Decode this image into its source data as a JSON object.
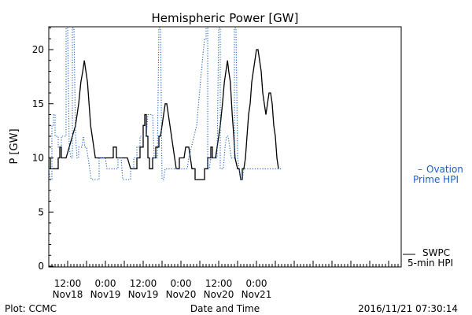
{
  "chart_data": {
    "type": "line",
    "title": "Hemispheric Power [GW]",
    "ylabel": "P [GW]",
    "xlabel": "Date and Time",
    "ylim": [
      0,
      22
    ],
    "y_ticks": [
      0,
      5,
      10,
      15,
      20
    ],
    "x_range_hours": [
      0,
      112
    ],
    "grid": false,
    "x_ticks": [
      {
        "t": 6,
        "time": "12:00",
        "date": "Nov18"
      },
      {
        "t": 18,
        "time": "0:00",
        "date": "Nov19"
      },
      {
        "t": 30,
        "time": "12:00",
        "date": "Nov19"
      },
      {
        "t": 42,
        "time": "0:00",
        "date": "Nov20"
      },
      {
        "t": 54,
        "time": "12:00",
        "date": "Nov20"
      },
      {
        "t": 66,
        "time": "0:00",
        "date": "Nov21"
      }
    ],
    "series": [
      {
        "name": "SWPC 5-min HPI",
        "color": "#000000",
        "style": "solid",
        "points": [
          [
            0,
            10
          ],
          [
            0.5,
            10
          ],
          [
            0.5,
            9
          ],
          [
            3,
            9
          ],
          [
            3,
            10
          ],
          [
            3.5,
            10
          ],
          [
            3.5,
            11
          ],
          [
            4,
            11
          ],
          [
            4,
            10
          ],
          [
            5.5,
            10
          ],
          [
            6.5,
            11
          ],
          [
            7.5,
            12
          ],
          [
            8.5,
            13
          ],
          [
            9.5,
            15
          ],
          [
            10.2,
            17
          ],
          [
            10.8,
            18
          ],
          [
            11.3,
            19
          ],
          [
            11.8,
            18
          ],
          [
            12.3,
            17
          ],
          [
            12.8,
            15
          ],
          [
            13.3,
            13
          ],
          [
            13.8,
            12
          ],
          [
            14.3,
            11
          ],
          [
            14.8,
            10
          ],
          [
            20.5,
            10
          ],
          [
            20.5,
            11
          ],
          [
            21.5,
            11
          ],
          [
            21.5,
            10
          ],
          [
            25,
            10
          ],
          [
            26,
            9
          ],
          [
            28,
            9
          ],
          [
            28,
            10
          ],
          [
            29,
            10
          ],
          [
            29,
            11
          ],
          [
            30,
            11
          ],
          [
            30,
            13
          ],
          [
            30.5,
            13
          ],
          [
            30.5,
            14
          ],
          [
            31,
            14
          ],
          [
            31,
            12
          ],
          [
            31.5,
            12
          ],
          [
            31.5,
            10
          ],
          [
            32,
            10
          ],
          [
            32,
            9
          ],
          [
            33,
            9
          ],
          [
            33,
            10
          ],
          [
            34,
            10
          ],
          [
            34,
            11
          ],
          [
            35,
            11
          ],
          [
            35,
            12
          ],
          [
            35.5,
            12
          ],
          [
            36,
            13
          ],
          [
            36.5,
            14
          ],
          [
            37,
            15
          ],
          [
            37.5,
            15
          ],
          [
            38,
            14
          ],
          [
            38.5,
            13
          ],
          [
            39,
            12
          ],
          [
            39.5,
            11
          ],
          [
            40,
            10
          ],
          [
            40.5,
            9
          ],
          [
            41.5,
            9
          ],
          [
            41.5,
            10
          ],
          [
            43,
            10
          ],
          [
            43.5,
            11
          ],
          [
            44.5,
            11
          ],
          [
            45,
            10
          ],
          [
            45.5,
            9
          ],
          [
            46.5,
            9
          ],
          [
            46.5,
            8
          ],
          [
            49.5,
            8
          ],
          [
            49.5,
            9
          ],
          [
            50.5,
            9
          ],
          [
            50.5,
            10
          ],
          [
            51.5,
            10
          ],
          [
            51.5,
            11
          ],
          [
            52,
            11
          ],
          [
            52,
            10
          ],
          [
            53,
            10
          ],
          [
            53.5,
            11
          ],
          [
            54.5,
            13
          ],
          [
            55.2,
            15
          ],
          [
            55.8,
            17
          ],
          [
            56.3,
            18
          ],
          [
            56.8,
            19
          ],
          [
            57.2,
            18
          ],
          [
            57.7,
            17
          ],
          [
            58.3,
            14
          ],
          [
            58.8,
            12
          ],
          [
            59.2,
            10
          ],
          [
            60,
            9
          ],
          [
            60.5,
            9
          ],
          [
            61,
            8
          ],
          [
            61.5,
            8
          ],
          [
            61.5,
            9
          ],
          [
            62,
            9
          ],
          [
            62.5,
            10
          ],
          [
            63,
            12
          ],
          [
            63.5,
            14
          ],
          [
            64,
            15
          ],
          [
            64.5,
            17
          ],
          [
            65,
            18
          ],
          [
            65.5,
            19
          ],
          [
            66,
            20
          ],
          [
            66.5,
            20
          ],
          [
            67,
            19
          ],
          [
            67.5,
            18
          ],
          [
            68,
            16
          ],
          [
            68.5,
            15
          ],
          [
            69,
            14
          ],
          [
            69.5,
            15
          ],
          [
            70,
            16
          ],
          [
            70.5,
            16
          ],
          [
            71,
            15
          ],
          [
            71.5,
            13
          ],
          [
            72,
            12
          ],
          [
            72.5,
            10
          ],
          [
            73,
            9
          ]
        ]
      },
      {
        "name": "Ovation Prime HPI",
        "color": "#1a5fc4",
        "style": "dotted",
        "points": [
          [
            0,
            9
          ],
          [
            0.5,
            8
          ],
          [
            1,
            8
          ],
          [
            1,
            13
          ],
          [
            1.5,
            13
          ],
          [
            1.5,
            14
          ],
          [
            2,
            14
          ],
          [
            2,
            12
          ],
          [
            3,
            12
          ],
          [
            3,
            11
          ],
          [
            4,
            11
          ],
          [
            4,
            12
          ],
          [
            5.5,
            12
          ],
          [
            5.5,
            22
          ],
          [
            6,
            22
          ],
          [
            6.5,
            11
          ],
          [
            7,
            10
          ],
          [
            7.5,
            10
          ],
          [
            7.5,
            22
          ],
          [
            8,
            22
          ],
          [
            8.5,
            12
          ],
          [
            9,
            10
          ],
          [
            9.5,
            10
          ],
          [
            9.5,
            11
          ],
          [
            10.5,
            11
          ],
          [
            11,
            12
          ],
          [
            11.5,
            11
          ],
          [
            12,
            11
          ],
          [
            12.5,
            10
          ],
          [
            13,
            9
          ],
          [
            13.5,
            8
          ],
          [
            16,
            8
          ],
          [
            16,
            10
          ],
          [
            18,
            10
          ],
          [
            18.5,
            9
          ],
          [
            22,
            9
          ],
          [
            22,
            10
          ],
          [
            23,
            10
          ],
          [
            23.5,
            8
          ],
          [
            26,
            8
          ],
          [
            26,
            9
          ],
          [
            27,
            9
          ],
          [
            27,
            10
          ],
          [
            28,
            10
          ],
          [
            28,
            11
          ],
          [
            29,
            11
          ],
          [
            29,
            12
          ],
          [
            31,
            12
          ],
          [
            31.5,
            14
          ],
          [
            33,
            14
          ],
          [
            33.5,
            10
          ],
          [
            34.5,
            10
          ],
          [
            35,
            22
          ],
          [
            35.5,
            22
          ],
          [
            36,
            8
          ],
          [
            36.5,
            8
          ],
          [
            37,
            9
          ],
          [
            44,
            9
          ],
          [
            44.5,
            10
          ],
          [
            47,
            13
          ],
          [
            48.5,
            18
          ],
          [
            49.5,
            21
          ],
          [
            50,
            21
          ],
          [
            50,
            22
          ],
          [
            50.5,
            22
          ],
          [
            50.5,
            9
          ],
          [
            51,
            9
          ],
          [
            51.5,
            10
          ],
          [
            53.5,
            10
          ],
          [
            54,
            22
          ],
          [
            54.5,
            22
          ],
          [
            54.5,
            9
          ],
          [
            55.5,
            9
          ],
          [
            56,
            11
          ],
          [
            56.5,
            12
          ],
          [
            57,
            12
          ],
          [
            57.5,
            11
          ],
          [
            58,
            10
          ],
          [
            59,
            10
          ],
          [
            59,
            22
          ],
          [
            59.5,
            22
          ],
          [
            60,
            10
          ],
          [
            60.5,
            9
          ],
          [
            61,
            8
          ],
          [
            61.5,
            8
          ],
          [
            62,
            9
          ],
          [
            73,
            9
          ],
          [
            74,
            9
          ]
        ]
      }
    ],
    "legend": [
      {
        "dash": "–",
        "line1": "Ovation",
        "line2": "Prime HPI",
        "color": "#1a5fc4",
        "placement": "right-middle"
      },
      {
        "line1": "SWPC",
        "line2": "5-min HPI",
        "color": "#000000",
        "placement": "right-bottom"
      }
    ]
  },
  "footer": {
    "left": "Plot: CCMC",
    "right": "2016/11/21 07:30:14"
  }
}
